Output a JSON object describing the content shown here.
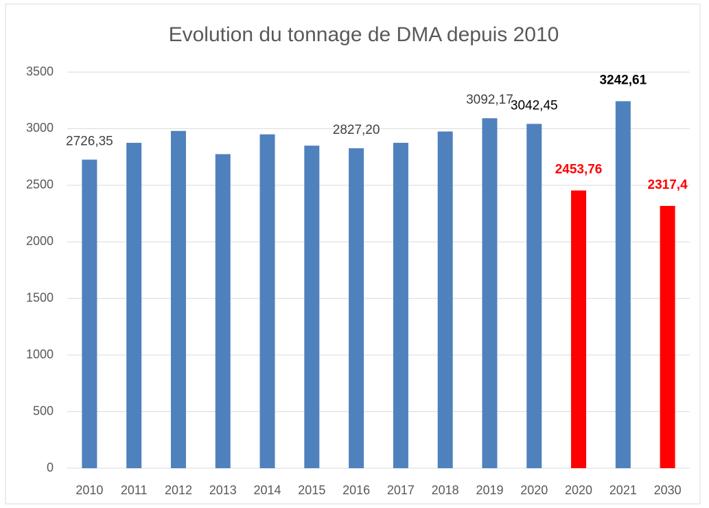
{
  "chart_data": {
    "type": "bar",
    "title": "Evolution du tonnage de DMA depuis 2010",
    "categories": [
      "2010",
      "2011",
      "2012",
      "2013",
      "2014",
      "2015",
      "2016",
      "2017",
      "2018",
      "2019",
      "2020",
      "2020",
      "2021",
      "2030"
    ],
    "values": [
      2726.35,
      2875,
      2980,
      2775,
      2950,
      2850,
      2827.2,
      2875,
      2975,
      3092.17,
      3042.45,
      2453.76,
      3242.61,
      2317.4
    ],
    "value_labels": [
      "2726,35",
      null,
      null,
      null,
      null,
      null,
      "2827,20",
      null,
      null,
      "3092,17",
      "3042,45",
      "2453,76",
      "3242,61",
      "2317,4"
    ],
    "colors": [
      "#4f81bd",
      "#4f81bd",
      "#4f81bd",
      "#4f81bd",
      "#4f81bd",
      "#4f81bd",
      "#4f81bd",
      "#4f81bd",
      "#4f81bd",
      "#4f81bd",
      "#4f81bd",
      "#ff0000",
      "#4f81bd",
      "#ff0000"
    ],
    "value_label_colors": [
      "#404040",
      "#404040",
      "#404040",
      "#404040",
      "#404040",
      "#404040",
      "#404040",
      "#404040",
      "#404040",
      "#404040",
      "#000000",
      "#ff0000",
      "#000000",
      "#ff0000"
    ],
    "value_label_bold": [
      false,
      false,
      false,
      false,
      false,
      false,
      false,
      false,
      false,
      false,
      false,
      true,
      true,
      true
    ],
    "ylim": [
      0,
      3500
    ],
    "yticks": [
      0,
      500,
      1000,
      1500,
      2000,
      2500,
      3000,
      3500
    ],
    "grid": true
  }
}
